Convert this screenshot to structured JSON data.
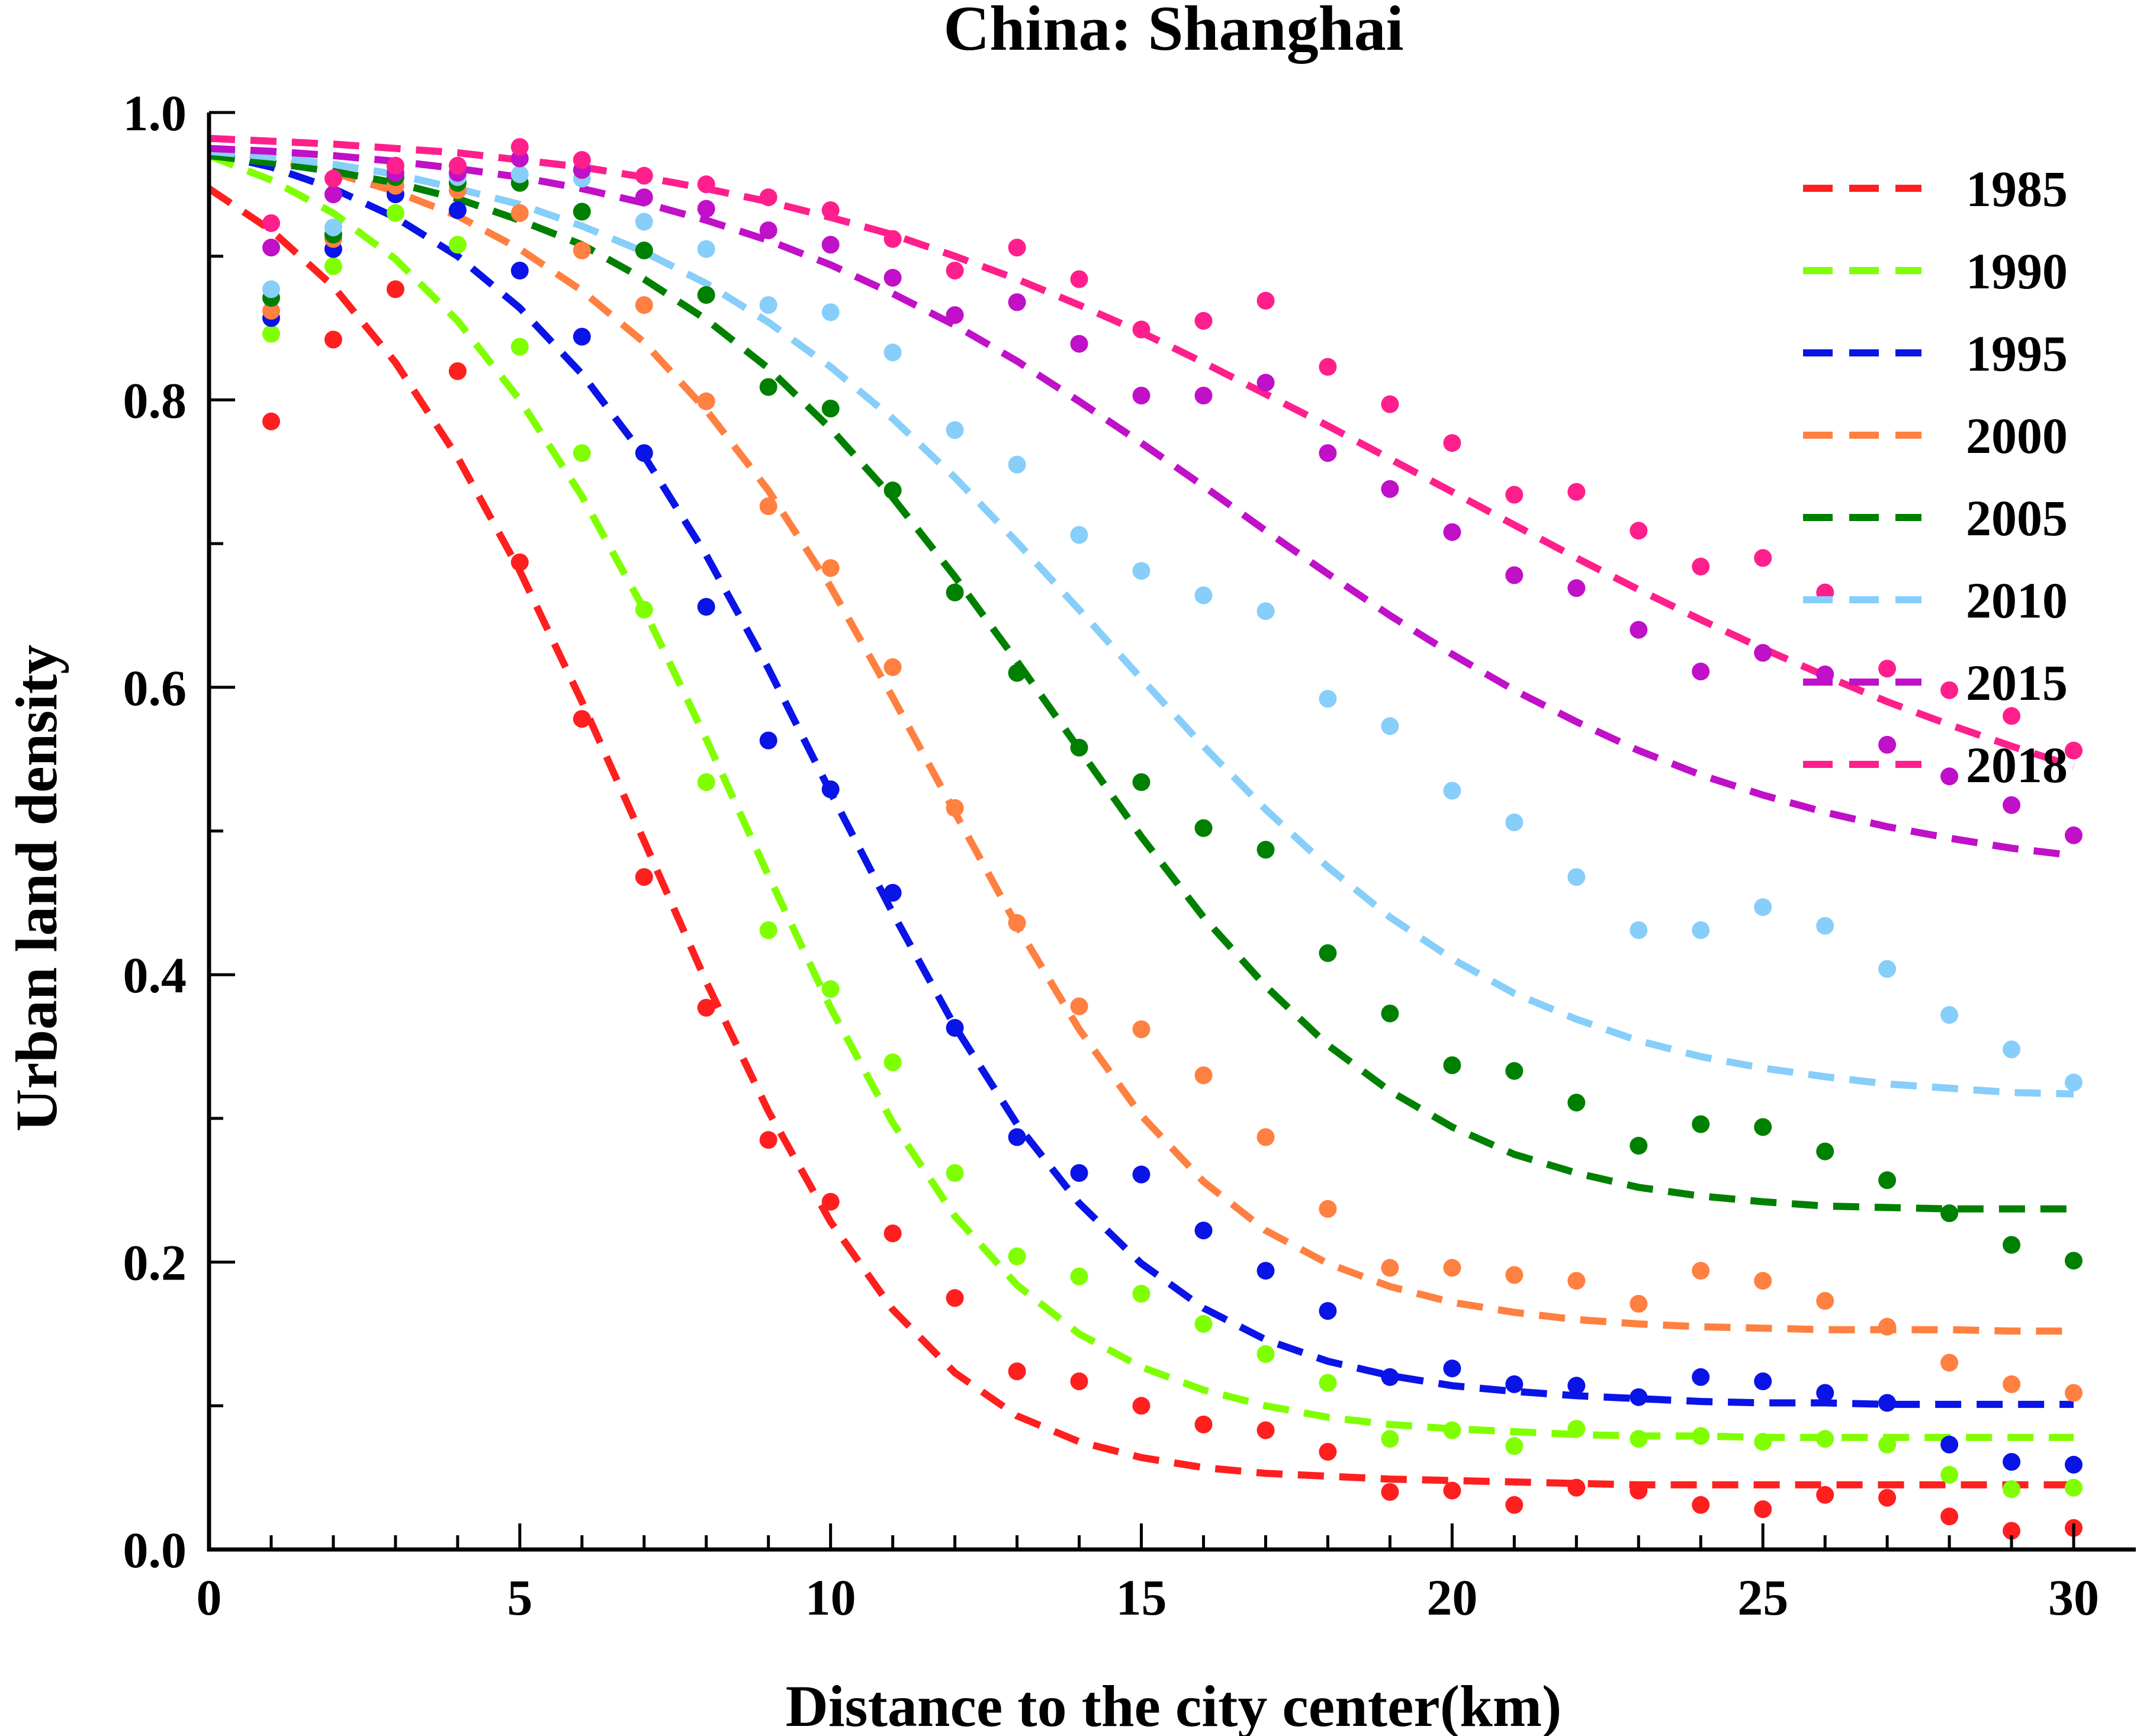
{
  "chart_data": {
    "type": "line",
    "title": "China: Shanghai",
    "xlabel": "Distance to the city center(km)",
    "ylabel": "Urban land density",
    "xlim": [
      0,
      31
    ],
    "ylim": [
      0.0,
      1.0
    ],
    "xticks": [
      0,
      5,
      10,
      15,
      20,
      25,
      30
    ],
    "xtick_labels": [
      "0",
      "5",
      "10",
      "15",
      "20",
      "25",
      "30"
    ],
    "yticks": [
      0.0,
      0.2,
      0.4,
      0.6,
      0.8,
      1.0
    ],
    "ytick_labels": [
      "0.0",
      "0.2",
      "0.4",
      "0.6",
      "0.8",
      "1.0"
    ],
    "grid": false,
    "legend_position": "top-right",
    "x": [
      1,
      2,
      3,
      4,
      5,
      6,
      7,
      8,
      9,
      10,
      11,
      12,
      13,
      14,
      15,
      16,
      17,
      18,
      19,
      20,
      21,
      22,
      23,
      24,
      25,
      26,
      27,
      28,
      29,
      30
    ],
    "fit_x": [
      0,
      1,
      2,
      3,
      4,
      5,
      6,
      7,
      8,
      9,
      10,
      11,
      12,
      13,
      14,
      15,
      16,
      17,
      18,
      19,
      20,
      21,
      22,
      23,
      24,
      25,
      26,
      27,
      28,
      29,
      30
    ],
    "series": [
      {
        "name": "1985",
        "color": "#ff1f1f",
        "points": [
          0.785,
          0.842,
          0.877,
          0.82,
          0.687,
          0.578,
          0.468,
          0.377,
          0.285,
          0.242,
          0.22,
          0.175,
          0.124,
          0.117,
          0.1,
          0.087,
          0.083,
          0.068,
          0.04,
          0.041,
          0.031,
          0.043,
          0.041,
          0.031,
          0.028,
          0.038,
          0.036,
          0.023,
          0.013,
          0.015
        ],
        "fit": [
          0.947,
          0.918,
          0.879,
          0.826,
          0.76,
          0.681,
          0.59,
          0.493,
          0.395,
          0.305,
          0.228,
          0.167,
          0.123,
          0.093,
          0.075,
          0.064,
          0.057,
          0.053,
          0.051,
          0.049,
          0.048,
          0.047,
          0.046,
          0.045,
          0.045,
          0.045,
          0.045,
          0.045,
          0.045,
          0.045,
          0.045
        ]
      },
      {
        "name": "1990",
        "color": "#80ff00",
        "points": [
          0.846,
          0.893,
          0.93,
          0.908,
          0.837,
          0.763,
          0.654,
          0.534,
          0.431,
          0.39,
          0.339,
          0.262,
          0.204,
          0.19,
          0.178,
          0.157,
          0.136,
          0.116,
          0.077,
          0.083,
          0.072,
          0.084,
          0.077,
          0.079,
          0.075,
          0.077,
          0.073,
          0.052,
          0.042,
          0.043
        ],
        "fit": [
          0.97,
          0.953,
          0.93,
          0.898,
          0.855,
          0.8,
          0.733,
          0.654,
          0.564,
          0.469,
          0.377,
          0.297,
          0.232,
          0.184,
          0.15,
          0.127,
          0.111,
          0.1,
          0.092,
          0.087,
          0.084,
          0.082,
          0.08,
          0.079,
          0.079,
          0.078,
          0.078,
          0.078,
          0.078,
          0.078,
          0.078
        ]
      },
      {
        "name": "1995",
        "color": "#0a14e6",
        "points": [
          0.857,
          0.905,
          0.943,
          0.932,
          0.89,
          0.844,
          0.763,
          0.656,
          0.563,
          0.529,
          0.457,
          0.363,
          0.287,
          0.262,
          0.261,
          0.222,
          0.194,
          0.166,
          0.12,
          0.126,
          0.115,
          0.114,
          0.106,
          0.12,
          0.117,
          0.109,
          0.102,
          0.073,
          0.061,
          0.059
        ],
        "fit": [
          0.972,
          0.962,
          0.947,
          0.927,
          0.9,
          0.864,
          0.818,
          0.761,
          0.692,
          0.613,
          0.527,
          0.443,
          0.364,
          0.296,
          0.241,
          0.199,
          0.168,
          0.146,
          0.131,
          0.121,
          0.114,
          0.11,
          0.107,
          0.105,
          0.103,
          0.102,
          0.102,
          0.101,
          0.101,
          0.101,
          0.101
        ]
      },
      {
        "name": "2000",
        "color": "#ff8040",
        "points": [
          0.862,
          0.912,
          0.949,
          0.946,
          0.93,
          0.904,
          0.866,
          0.799,
          0.726,
          0.683,
          0.614,
          0.516,
          0.436,
          0.378,
          0.362,
          0.33,
          0.287,
          0.237,
          0.196,
          0.196,
          0.191,
          0.187,
          0.171,
          0.194,
          0.187,
          0.173,
          0.155,
          0.13,
          0.115,
          0.109
        ],
        "fit": [
          0.975,
          0.968,
          0.958,
          0.945,
          0.928,
          0.905,
          0.876,
          0.84,
          0.793,
          0.737,
          0.67,
          0.593,
          0.513,
          0.434,
          0.362,
          0.302,
          0.256,
          0.222,
          0.199,
          0.183,
          0.172,
          0.165,
          0.16,
          0.157,
          0.155,
          0.154,
          0.153,
          0.153,
          0.153,
          0.152,
          0.152
        ]
      },
      {
        "name": "2005",
        "color": "#008000",
        "points": [
          0.871,
          0.915,
          0.955,
          0.951,
          0.951,
          0.931,
          0.904,
          0.873,
          0.809,
          0.794,
          0.737,
          0.666,
          0.61,
          0.558,
          0.534,
          0.502,
          0.487,
          0.415,
          0.373,
          0.337,
          0.333,
          0.311,
          0.281,
          0.296,
          0.294,
          0.277,
          0.257,
          0.234,
          0.212,
          0.201
        ],
        "fit": [
          0.97,
          0.965,
          0.959,
          0.951,
          0.94,
          0.925,
          0.908,
          0.884,
          0.856,
          0.822,
          0.78,
          0.732,
          0.677,
          0.618,
          0.557,
          0.496,
          0.44,
          0.392,
          0.351,
          0.319,
          0.294,
          0.275,
          0.262,
          0.252,
          0.246,
          0.242,
          0.239,
          0.238,
          0.237,
          0.237,
          0.237
        ]
      },
      {
        "name": "2010",
        "color": "#87cefa",
        "points": [
          0.877,
          0.92,
          0.962,
          0.955,
          0.957,
          0.954,
          0.924,
          0.905,
          0.866,
          0.861,
          0.833,
          0.779,
          0.755,
          0.706,
          0.681,
          0.664,
          0.653,
          0.592,
          0.573,
          0.528,
          0.506,
          0.468,
          0.431,
          0.431,
          0.447,
          0.434,
          0.404,
          0.372,
          0.348,
          0.325
        ],
        "fit": [
          0.973,
          0.969,
          0.964,
          0.957,
          0.947,
          0.936,
          0.921,
          0.903,
          0.881,
          0.854,
          0.823,
          0.787,
          0.746,
          0.701,
          0.654,
          0.606,
          0.559,
          0.515,
          0.475,
          0.44,
          0.411,
          0.387,
          0.369,
          0.354,
          0.343,
          0.335,
          0.329,
          0.324,
          0.321,
          0.318,
          0.317
        ]
      },
      {
        "name": "2015",
        "color": "#c010c8",
        "points": [
          0.906,
          0.943,
          0.958,
          0.958,
          0.968,
          0.96,
          0.941,
          0.933,
          0.918,
          0.908,
          0.885,
          0.859,
          0.868,
          0.839,
          0.803,
          0.803,
          0.812,
          0.763,
          0.738,
          0.708,
          0.678,
          0.669,
          0.64,
          0.611,
          0.624,
          0.609,
          0.56,
          0.538,
          0.518,
          0.497
        ],
        "fit": [
          0.975,
          0.973,
          0.97,
          0.966,
          0.961,
          0.955,
          0.947,
          0.937,
          0.925,
          0.911,
          0.894,
          0.874,
          0.852,
          0.827,
          0.799,
          0.77,
          0.74,
          0.709,
          0.679,
          0.65,
          0.623,
          0.598,
          0.576,
          0.556,
          0.539,
          0.525,
          0.513,
          0.503,
          0.495,
          0.488,
          0.483
        ]
      },
      {
        "name": "2018",
        "color": "#ff1f8c",
        "points": [
          0.923,
          0.954,
          0.963,
          0.963,
          0.976,
          0.967,
          0.956,
          0.95,
          0.941,
          0.932,
          0.912,
          0.89,
          0.906,
          0.884,
          0.849,
          0.855,
          0.869,
          0.823,
          0.797,
          0.77,
          0.734,
          0.736,
          0.709,
          0.684,
          0.69,
          0.666,
          0.613,
          0.598,
          0.58,
          0.556
        ],
        "fit": [
          0.982,
          0.98,
          0.978,
          0.975,
          0.972,
          0.967,
          0.962,
          0.955,
          0.947,
          0.938,
          0.927,
          0.915,
          0.9,
          0.884,
          0.866,
          0.847,
          0.826,
          0.804,
          0.782,
          0.759,
          0.736,
          0.713,
          0.69,
          0.668,
          0.647,
          0.627,
          0.608,
          0.59,
          0.574,
          0.559,
          0.545
        ]
      }
    ]
  }
}
